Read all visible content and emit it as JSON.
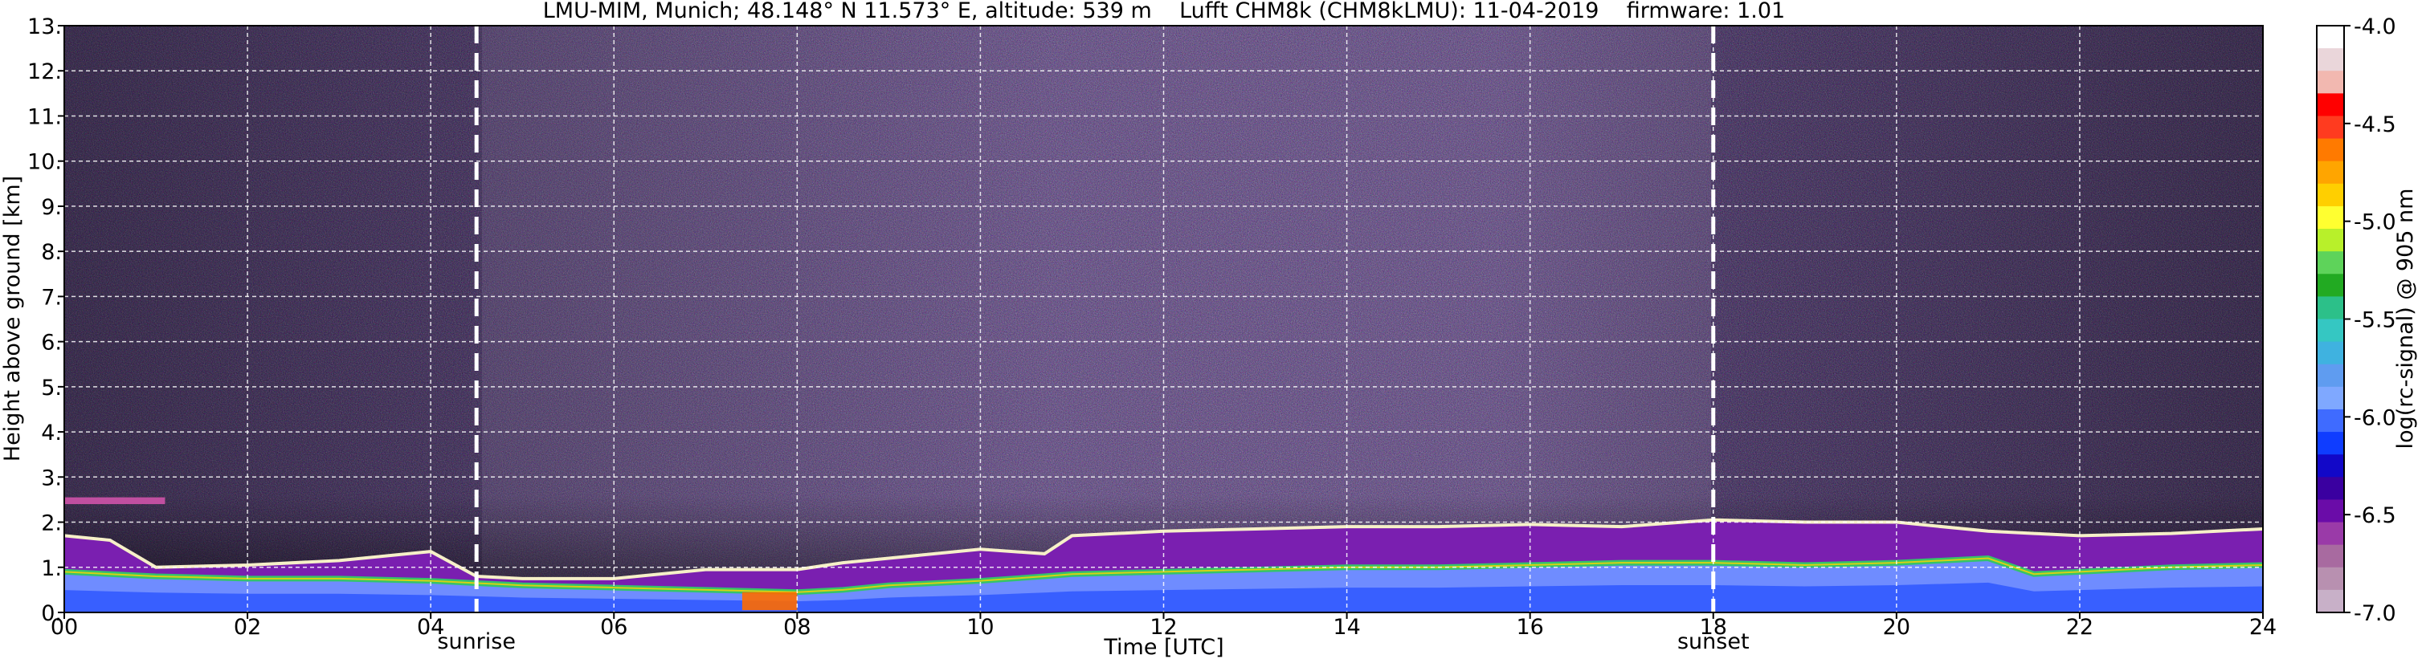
{
  "chart_data": {
    "type": "heatmap",
    "title": "LMU-MIM, Munich; 48.148° N 11.573° E, altitude: 539 m    Lufft CHM8k (CHM8kLMU): 11-04-2019    firmware: 1.01",
    "xlabel": "Time [UTC]",
    "ylabel": "Height above ground [km]",
    "xlim": [
      0,
      24
    ],
    "ylim": [
      0,
      13
    ],
    "x_ticks": [
      0,
      2,
      4,
      6,
      8,
      10,
      12,
      14,
      16,
      18,
      20,
      22,
      24
    ],
    "x_tick_labels": [
      "00",
      "02",
      "04",
      "06",
      "08",
      "10",
      "12",
      "14",
      "16",
      "18",
      "20",
      "22",
      "24"
    ],
    "y_ticks": [
      0,
      1,
      2,
      3,
      4,
      5,
      6,
      7,
      8,
      9,
      10,
      11,
      12,
      13
    ],
    "y_tick_labels": [
      "0.",
      "1.",
      "2.",
      "3.",
      "4.",
      "5.",
      "6.",
      "7.",
      "8.",
      "9.",
      "10.",
      "11.",
      "12.",
      "13."
    ],
    "grid": true,
    "colorbar": {
      "label": "log(rc-signal) @ 905 nm",
      "range": [
        -7.0,
        -4.0
      ],
      "tick_values": [
        -4.0,
        -4.5,
        -5.0,
        -5.5,
        -6.0,
        -6.5,
        -7.0
      ],
      "tick_labels": [
        "-4.0",
        "-4.5",
        "-5.0",
        "-5.5",
        "-6.0",
        "-6.5",
        "-7.0"
      ],
      "colors_top_to_bottom": [
        "#ffffff",
        "#ead6da",
        "#f2b8b0",
        "#ff0000",
        "#ff3b1f",
        "#ff7a00",
        "#ffa500",
        "#ffcf00",
        "#ffff30",
        "#b8f02a",
        "#5ed35a",
        "#22aa22",
        "#2cc089",
        "#35c7c2",
        "#3fb2e0",
        "#5f9cf0",
        "#7fa8ff",
        "#3f6bff",
        "#0f3dff",
        "#1208c8",
        "#3a00a0",
        "#6a0ca8",
        "#9a3aa8",
        "#a86aa0",
        "#b890b0",
        "#c8b0c8"
      ]
    },
    "events": [
      {
        "label": "sunrise",
        "x": 4.5
      },
      {
        "label": "sunset",
        "x": 18.0
      }
    ],
    "boundary_layer_top_km": {
      "x": [
        0.0,
        0.5,
        1.0,
        2.0,
        3.0,
        4.0,
        4.5,
        5.0,
        6.0,
        7.0,
        8.0,
        8.5,
        9.0,
        10.0,
        10.7,
        11.0,
        12.0,
        13.0,
        14.0,
        15.0,
        16.0,
        17.0,
        18.0,
        19.0,
        20.0,
        21.0,
        21.5,
        22.0,
        23.0,
        24.0
      ],
      "upper": [
        1.7,
        1.6,
        1.0,
        1.05,
        1.15,
        1.35,
        0.8,
        0.75,
        0.75,
        0.95,
        0.95,
        1.1,
        1.2,
        1.4,
        1.3,
        1.7,
        1.8,
        1.85,
        1.9,
        1.9,
        1.95,
        1.9,
        2.05,
        2.0,
        2.0,
        1.8,
        1.75,
        1.7,
        1.75,
        1.85
      ],
      "lower": [
        0.9,
        0.85,
        0.8,
        0.75,
        0.75,
        0.7,
        0.65,
        0.6,
        0.55,
        0.5,
        0.45,
        0.5,
        0.6,
        0.7,
        0.8,
        0.85,
        0.9,
        0.95,
        1.0,
        1.0,
        1.05,
        1.1,
        1.1,
        1.05,
        1.1,
        1.2,
        0.85,
        0.9,
        1.0,
        1.05
      ]
    },
    "aerosol_layer_km": {
      "x": [
        0.0,
        1.1
      ],
      "bottom": 2.4,
      "top": 2.55
    }
  }
}
